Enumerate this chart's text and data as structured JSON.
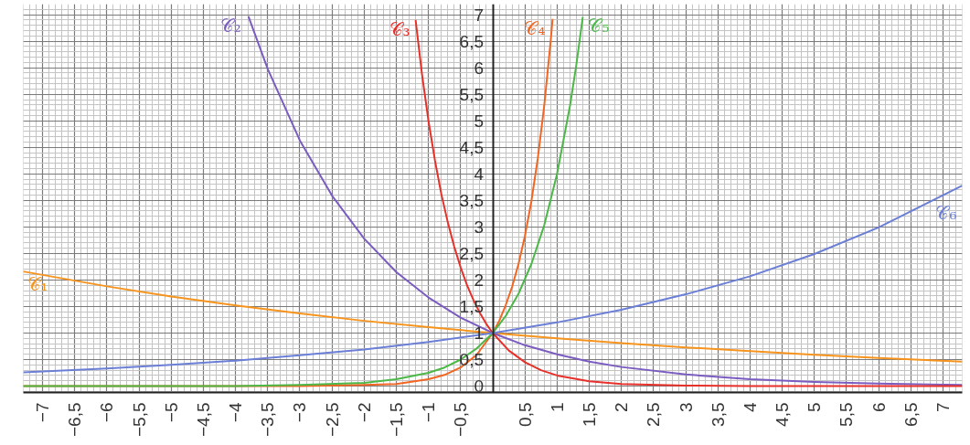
{
  "chart_data": {
    "type": "line",
    "xlim": [
      -7.3,
      7.3
    ],
    "ylim": [
      -0.12,
      7.2
    ],
    "xticks": [
      {
        "value": -7,
        "label": "−7"
      },
      {
        "value": -6.5,
        "label": "−6,5"
      },
      {
        "value": -6,
        "label": "−6"
      },
      {
        "value": -5.5,
        "label": "−5,5"
      },
      {
        "value": -5,
        "label": "−5"
      },
      {
        "value": -4.5,
        "label": "−4,5"
      },
      {
        "value": -4,
        "label": "−4"
      },
      {
        "value": -3.5,
        "label": "−3,5"
      },
      {
        "value": -3,
        "label": "−3"
      },
      {
        "value": -2.5,
        "label": "−2,5"
      },
      {
        "value": -2,
        "label": "−2"
      },
      {
        "value": -1.5,
        "label": "−1,5"
      },
      {
        "value": -1,
        "label": "−1"
      },
      {
        "value": -0.5,
        "label": "−0,5"
      },
      {
        "value": 0.5,
        "label": "0,5"
      },
      1,
      {
        "value": 1.5,
        "label": "1,5"
      },
      2,
      {
        "value": 2.5,
        "label": "2,5"
      },
      3,
      {
        "value": 3.5,
        "label": "3,5"
      },
      4,
      {
        "value": 4.5,
        "label": "4,5"
      },
      5,
      {
        "value": 5.5,
        "label": "5,5"
      },
      6,
      {
        "value": 6.5,
        "label": "6,5"
      },
      7
    ],
    "yticks": [
      0,
      {
        "value": 0.5,
        "label": "0,5"
      },
      1,
      {
        "value": 1.5,
        "label": "1,5"
      },
      2,
      {
        "value": 2.5,
        "label": "2,5"
      },
      3,
      {
        "value": 3.5,
        "label": "3,5"
      },
      4,
      {
        "value": 4.5,
        "label": "4,5"
      },
      5,
      {
        "value": 5.5,
        "label": "5,5"
      },
      6,
      {
        "value": 6.5,
        "label": "6,5"
      },
      7
    ],
    "grid": true,
    "series": [
      {
        "name": "𝒞₁",
        "color": "#f7941d",
        "x": [
          -7.3,
          -6,
          -5,
          -4,
          -3,
          -2,
          -1,
          0,
          1,
          2,
          3,
          4,
          5,
          6,
          7.3
        ],
        "values": [
          2.16,
          1.88,
          1.69,
          1.52,
          1.37,
          1.23,
          1.11,
          1,
          0.9,
          0.81,
          0.73,
          0.66,
          0.59,
          0.53,
          0.46
        ]
      },
      {
        "name": "𝒞₂",
        "color": "#7b5cc0",
        "x": [
          -3.8,
          -3.5,
          -3,
          -2.5,
          -2,
          -1.5,
          -1,
          -0.5,
          0,
          0.5,
          1,
          1.5,
          2,
          3,
          4,
          5,
          6,
          7.3
        ],
        "values": [
          6.97,
          5.98,
          4.63,
          3.59,
          2.78,
          2.15,
          1.67,
          1.29,
          1,
          0.77,
          0.6,
          0.46,
          0.36,
          0.22,
          0.13,
          0.08,
          0.05,
          0.02
        ]
      },
      {
        "name": "𝒞₃",
        "color": "#e8302a",
        "x": [
          -1.2,
          -1.1,
          -1,
          -0.9,
          -0.8,
          -0.7,
          -0.6,
          -0.5,
          -0.4,
          -0.3,
          -0.2,
          -0.1,
          0,
          0.25,
          0.5,
          0.75,
          1,
          1.5,
          2,
          3,
          4,
          7.3
        ],
        "values": [
          6.9,
          5.87,
          5,
          4.26,
          3.62,
          3.09,
          2.63,
          2.24,
          1.9,
          1.62,
          1.38,
          1.17,
          1,
          0.67,
          0.45,
          0.3,
          0.2,
          0.09,
          0.04,
          0.01,
          0,
          0
        ]
      },
      {
        "name": "𝒞₄",
        "color": "#f26522",
        "x": [
          -7.3,
          -3,
          -2,
          -1.5,
          -1,
          -0.75,
          -0.5,
          -0.25,
          0,
          0.1,
          0.2,
          0.3,
          0.4,
          0.5,
          0.6,
          0.7,
          0.8,
          0.9,
          0.93
        ],
        "values": [
          0,
          0,
          0.02,
          0.04,
          0.13,
          0.21,
          0.35,
          0.59,
          1,
          1.23,
          1.52,
          1.87,
          2.3,
          2.83,
          3.48,
          4.29,
          5.28,
          6.5,
          6.92
        ]
      },
      {
        "name": "𝒞₅",
        "color": "#4cb848",
        "x": [
          -7.3,
          -4,
          -3,
          -2,
          -1.5,
          -1,
          -0.75,
          -0.5,
          -0.25,
          0,
          0.2,
          0.4,
          0.6,
          0.8,
          1,
          1.2,
          1.3,
          1.4
        ],
        "values": [
          0,
          0,
          0.02,
          0.06,
          0.13,
          0.25,
          0.35,
          0.5,
          0.71,
          1,
          1.32,
          1.74,
          2.3,
          3.03,
          4,
          5.28,
          6.06,
          6.96
        ]
      },
      {
        "name": "𝒞₆",
        "color": "#6b7fd7",
        "x": [
          -7.3,
          -6,
          -5,
          -4,
          -3,
          -2,
          -1,
          0,
          1,
          2,
          3,
          4,
          5,
          6,
          7.3
        ],
        "values": [
          0.26,
          0.33,
          0.4,
          0.48,
          0.58,
          0.69,
          0.83,
          1,
          1.2,
          1.44,
          1.73,
          2.07,
          2.49,
          2.99,
          3.78
        ]
      }
    ]
  }
}
